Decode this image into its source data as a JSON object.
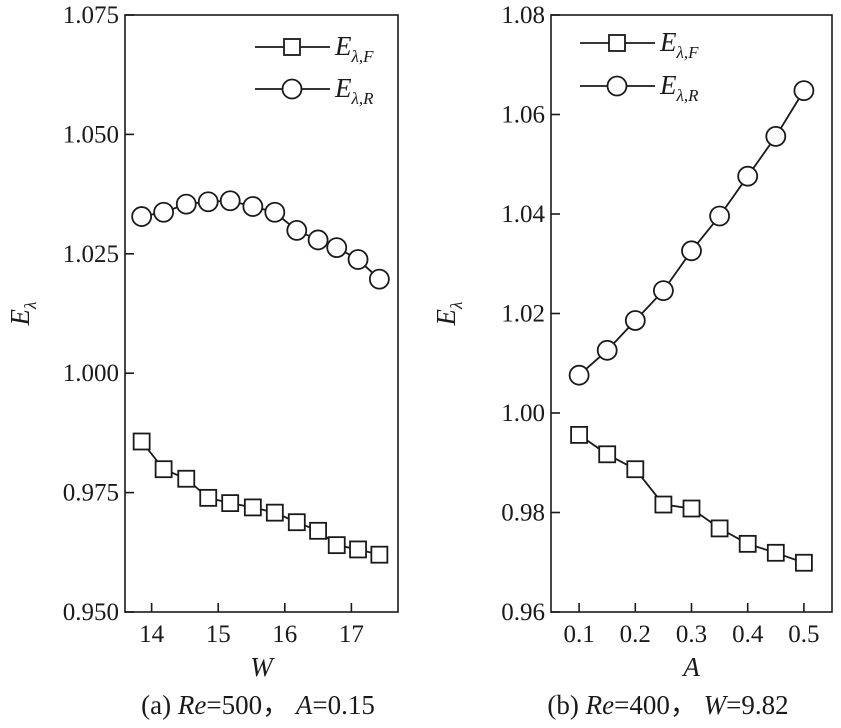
{
  "chart_data": [
    {
      "type": "line",
      "caption": {
        "prefix": "(a) ",
        "p1_var": "Re",
        "p1_val": "=500",
        "sep": "， ",
        "p2_var": "A",
        "p2_val": "=0.15"
      },
      "xlabel": "W",
      "ylabel": {
        "base": "E",
        "sub": "λ"
      },
      "xlim": [
        13.6,
        17.7
      ],
      "ylim": [
        0.95,
        1.075
      ],
      "xticks": [
        14,
        15,
        16,
        17
      ],
      "xtick_labels": [
        "14",
        "15",
        "16",
        "17"
      ],
      "yticks": [
        0.95,
        0.975,
        1.0,
        1.025,
        1.05,
        1.075
      ],
      "ytick_labels": [
        "0.950",
        "0.975",
        "1.000",
        "1.025",
        "1.050",
        "1.075"
      ],
      "legend_position": "top-right",
      "series": [
        {
          "name": "Eλ,F",
          "label_base": "E",
          "label_sub": "λ,F",
          "marker": "square",
          "x": [
            13.85,
            14.18,
            14.52,
            14.85,
            15.18,
            15.52,
            15.85,
            16.18,
            16.5,
            16.78,
            17.1,
            17.42
          ],
          "y": [
            0.9857,
            0.9799,
            0.9779,
            0.9739,
            0.9728,
            0.9719,
            0.9708,
            0.9688,
            0.967,
            0.964,
            0.9631,
            0.962
          ]
        },
        {
          "name": "Eλ,R",
          "label_base": "E",
          "label_sub": "λ,R",
          "marker": "circle",
          "x": [
            13.85,
            14.18,
            14.52,
            14.85,
            15.18,
            15.52,
            15.85,
            16.18,
            16.5,
            16.78,
            17.1,
            17.42
          ],
          "y": [
            1.0328,
            1.0337,
            1.0354,
            1.0359,
            1.0361,
            1.0349,
            1.0337,
            1.0299,
            1.0279,
            1.0263,
            1.0238,
            1.0197
          ]
        }
      ]
    },
    {
      "type": "line",
      "caption": {
        "prefix": "(b) ",
        "p1_var": "Re",
        "p1_val": "=400",
        "sep": "， ",
        "p2_var": "W",
        "p2_val": "=9.82"
      },
      "xlabel": "A",
      "ylabel": {
        "base": "E",
        "sub": "λ"
      },
      "xlim": [
        0.05,
        0.55
      ],
      "ylim": [
        0.96,
        1.08
      ],
      "xticks": [
        0.1,
        0.2,
        0.3,
        0.4,
        0.5
      ],
      "xtick_labels": [
        "0.1",
        "0.2",
        "0.3",
        "0.4",
        "0.5"
      ],
      "yticks": [
        0.96,
        0.98,
        1.0,
        1.02,
        1.04,
        1.06,
        1.08
      ],
      "ytick_labels": [
        "0.96",
        "0.98",
        "1.00",
        "1.02",
        "1.04",
        "1.06",
        "1.08"
      ],
      "legend_position": "top-left",
      "series": [
        {
          "name": "Eλ,F",
          "label_base": "E",
          "label_sub": "λ,F",
          "marker": "square",
          "x": [
            0.1,
            0.15,
            0.2,
            0.25,
            0.3,
            0.35,
            0.4,
            0.45,
            0.5
          ],
          "y": [
            0.9956,
            0.9917,
            0.9887,
            0.9816,
            0.9808,
            0.9768,
            0.9737,
            0.9719,
            0.9699
          ]
        },
        {
          "name": "Eλ,R",
          "label_base": "E",
          "label_sub": "λ,R",
          "marker": "circle",
          "x": [
            0.1,
            0.15,
            0.2,
            0.25,
            0.3,
            0.35,
            0.4,
            0.45,
            0.5
          ],
          "y": [
            1.0076,
            1.0126,
            1.0186,
            1.0246,
            1.0326,
            1.0396,
            1.0476,
            1.0556,
            1.0648
          ]
        }
      ]
    }
  ]
}
